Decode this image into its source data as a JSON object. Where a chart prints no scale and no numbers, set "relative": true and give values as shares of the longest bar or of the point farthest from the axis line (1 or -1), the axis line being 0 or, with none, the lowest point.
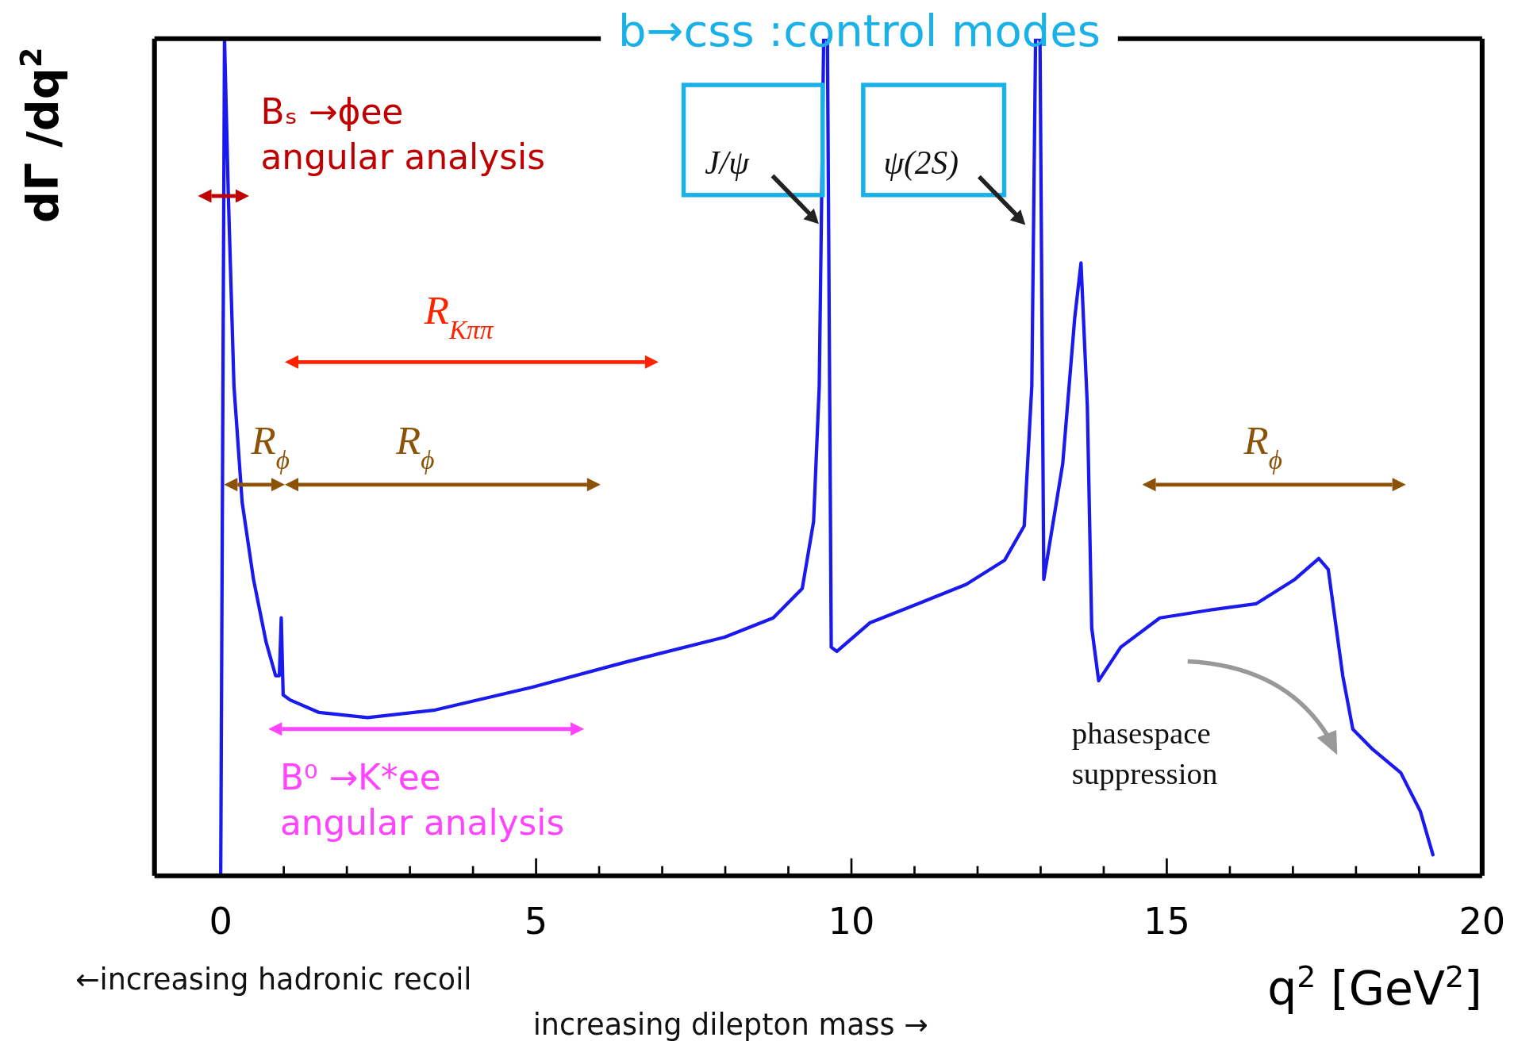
{
  "chart_data": {
    "type": "line",
    "title": "b→css :control modes",
    "xlabel": "q$^{2}$ [GeV$^{2}$]",
    "ylabel": "dΓ /dq$^{2}$",
    "relative": true,
    "xlim": [
      -1.05,
      20
    ],
    "xticks": [
      0,
      {
        "value": 1,
        "label": null
      },
      {
        "value": 2,
        "label": null
      },
      {
        "value": 3,
        "label": null
      },
      {
        "value": 4,
        "label": null
      },
      5,
      {
        "value": 6,
        "label": null
      },
      {
        "value": 7,
        "label": null
      },
      {
        "value": 8,
        "label": null
      },
      {
        "value": 9,
        "label": null
      },
      10,
      {
        "value": 11,
        "label": null
      },
      {
        "value": 12,
        "label": null
      },
      {
        "value": 13,
        "label": null
      },
      {
        "value": 14,
        "label": null
      },
      15,
      {
        "value": 16,
        "label": null
      },
      {
        "value": 17,
        "label": null
      },
      {
        "value": 18,
        "label": null
      },
      {
        "value": 19,
        "label": null
      },
      20
    ],
    "tick_labels": "x",
    "grid": false,
    "legend": false,
    "marker": "none",
    "line_style": "solid",
    "series": [
      {
        "color": "#1a1aee",
        "x": [
          0.0,
          0.06,
          0.12,
          0.21,
          0.34,
          0.52,
          0.72,
          0.87,
          0.93,
          0.96,
          0.99,
          1.1,
          1.56,
          2.33,
          3.4,
          4.93,
          6.46,
          7.99,
          8.76,
          9.22,
          9.4,
          9.49,
          9.56,
          9.62,
          9.68,
          9.77,
          10.29,
          11.06,
          11.82,
          12.43,
          12.74,
          12.86,
          12.92,
          12.99,
          13.05,
          13.35,
          13.54,
          13.64,
          13.74,
          13.81,
          13.92,
          14.27,
          14.89,
          15.65,
          16.42,
          17.03,
          17.41,
          17.56,
          17.79,
          17.95,
          18.25,
          18.71,
          19.02,
          19.22
        ],
        "values": [
          0,
          1,
          0.815,
          0.585,
          0.446,
          0.354,
          0.279,
          0.239,
          0.239,
          0.308,
          0.216,
          0.21,
          0.195,
          0.189,
          0.198,
          0.225,
          0.256,
          0.285,
          0.308,
          0.343,
          0.423,
          0.585,
          1,
          1,
          0.273,
          0.268,
          0.302,
          0.325,
          0.348,
          0.377,
          0.418,
          0.585,
          1,
          1,
          0.354,
          0.492,
          0.666,
          0.732,
          0.562,
          0.296,
          0.233,
          0.273,
          0.308,
          0.317,
          0.325,
          0.354,
          0.379,
          0.366,
          0.239,
          0.175,
          0.152,
          0.123,
          0.077,
          0.025
        ]
      }
    ],
    "annotations": [
      "Bₛ →ϕee\nangular analysis",
      "R$_{Kππ}$",
      "R$_{ϕ}$",
      "R$_{ϕ}$",
      "R$_{ϕ}$",
      "B⁰ →K*ee\nangular analysis",
      "J/ψ",
      "ψ(2S)",
      "phasespace\nsuppression",
      "←increasing hadronic recoil",
      "increasing dilepton mass →"
    ]
  }
}
